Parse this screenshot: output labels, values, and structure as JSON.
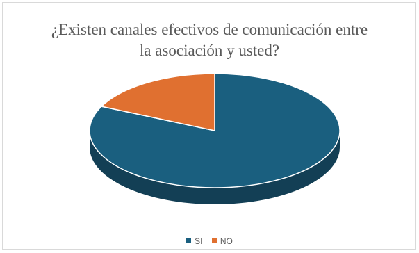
{
  "chart_data": {
    "type": "pie",
    "title_lines": [
      "¿Existen canales efectivos de comunicación entre",
      "la asociación  y usted?"
    ],
    "categories": [
      "SI",
      "NO"
    ],
    "values": [
      82,
      18
    ],
    "colors": [
      "#1a5f7f",
      "#e07030"
    ],
    "side_colors": [
      "#133f55",
      "#a34f1f"
    ],
    "legend_position": "bottom",
    "style": "3d"
  }
}
